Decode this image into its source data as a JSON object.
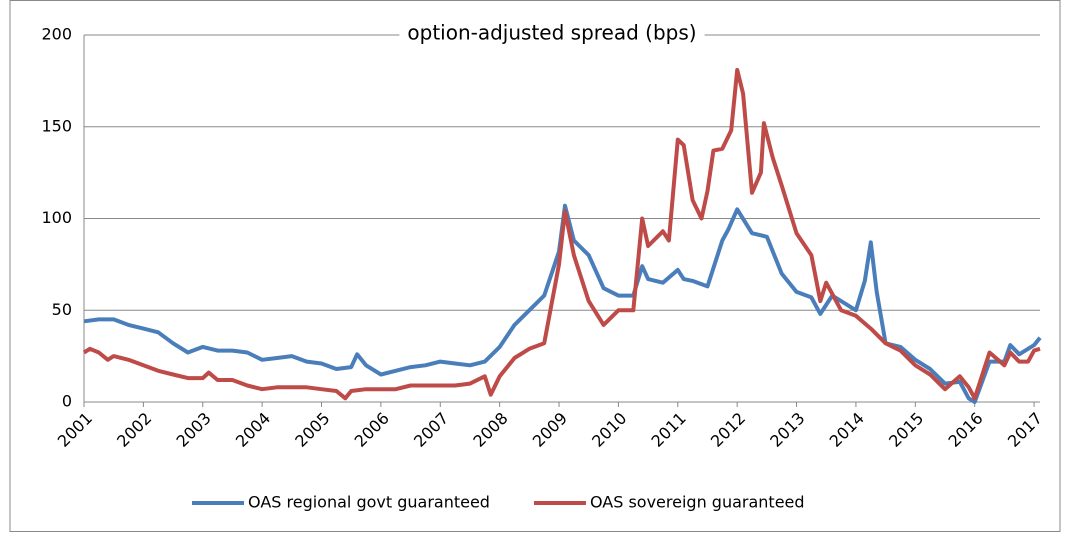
{
  "chart_data": {
    "type": "line",
    "title": "option-adjusted spread (bps)",
    "xlim": [
      2001,
      2017.1
    ],
    "xticks": [
      2001,
      2002,
      2003,
      2004,
      2005,
      2006,
      2007,
      2008,
      2009,
      2010,
      2011,
      2012,
      2013,
      2014,
      2015,
      2016,
      2017
    ],
    "ylim": [
      0,
      200
    ],
    "yticks": [
      0,
      50,
      100,
      150,
      200
    ],
    "grid": true,
    "legend": "bottom",
    "series": [
      {
        "name": "OAS regional govt guaranteed",
        "color": "#4a7ebb",
        "x": [
          2001,
          2001.25,
          2001.5,
          2001.75,
          2002,
          2002.25,
          2002.5,
          2002.75,
          2003,
          2003.25,
          2003.5,
          2003.75,
          2004,
          2004.25,
          2004.5,
          2004.75,
          2005,
          2005.25,
          2005.5,
          2005.6,
          2005.75,
          2006,
          2006.25,
          2006.5,
          2006.75,
          2007,
          2007.25,
          2007.5,
          2007.75,
          2008,
          2008.25,
          2008.5,
          2008.75,
          2009,
          2009.1,
          2009.25,
          2009.5,
          2009.75,
          2010,
          2010.25,
          2010.4,
          2010.5,
          2010.75,
          2011,
          2011.1,
          2011.25,
          2011.5,
          2011.75,
          2011.85,
          2012,
          2012.25,
          2012.5,
          2012.75,
          2013,
          2013.25,
          2013.4,
          2013.6,
          2013.75,
          2014,
          2014.15,
          2014.25,
          2014.35,
          2014.5,
          2014.75,
          2015,
          2015.25,
          2015.5,
          2015.75,
          2015.9,
          2016,
          2016.25,
          2016.5,
          2016.6,
          2016.75,
          2016.9,
          2017,
          2017.1
        ],
        "values": [
          44,
          45,
          45,
          42,
          40,
          38,
          32,
          27,
          30,
          28,
          28,
          27,
          23,
          24,
          25,
          22,
          21,
          18,
          19,
          26,
          20,
          15,
          17,
          19,
          20,
          22,
          21,
          20,
          22,
          30,
          42,
          50,
          58,
          82,
          107,
          88,
          80,
          62,
          58,
          58,
          74,
          67,
          65,
          72,
          67,
          66,
          63,
          88,
          94,
          105,
          92,
          90,
          70,
          60,
          57,
          48,
          58,
          55,
          50,
          66,
          87,
          60,
          32,
          30,
          23,
          18,
          10,
          11,
          2,
          0,
          22,
          22,
          31,
          26,
          29,
          31,
          35
        ]
      },
      {
        "name": "OAS sovereign guaranteed",
        "color": "#be4b48",
        "x": [
          2001,
          2001.1,
          2001.25,
          2001.4,
          2001.5,
          2001.75,
          2002,
          2002.25,
          2002.5,
          2002.75,
          2003,
          2003.1,
          2003.25,
          2003.5,
          2003.75,
          2004,
          2004.25,
          2004.5,
          2004.75,
          2005,
          2005.25,
          2005.4,
          2005.5,
          2005.75,
          2006,
          2006.25,
          2006.5,
          2006.75,
          2007,
          2007.25,
          2007.5,
          2007.75,
          2007.85,
          2008,
          2008.25,
          2008.5,
          2008.75,
          2009,
          2009.1,
          2009.25,
          2009.5,
          2009.75,
          2010,
          2010.25,
          2010.4,
          2010.5,
          2010.75,
          2010.85,
          2011,
          2011.1,
          2011.25,
          2011.4,
          2011.5,
          2011.6,
          2011.75,
          2011.9,
          2012,
          2012.1,
          2012.25,
          2012.4,
          2012.45,
          2012.6,
          2012.75,
          2013,
          2013.25,
          2013.4,
          2013.5,
          2013.75,
          2014,
          2014.25,
          2014.5,
          2014.75,
          2015,
          2015.25,
          2015.5,
          2015.75,
          2015.9,
          2016,
          2016.25,
          2016.5,
          2016.6,
          2016.75,
          2016.9,
          2017,
          2017.1
        ],
        "values": [
          27,
          29,
          27,
          23,
          25,
          23,
          20,
          17,
          15,
          13,
          13,
          16,
          12,
          12,
          9,
          7,
          8,
          8,
          8,
          7,
          6,
          2,
          6,
          7,
          7,
          7,
          9,
          9,
          9,
          9,
          10,
          14,
          4,
          14,
          24,
          29,
          32,
          75,
          104,
          80,
          55,
          42,
          50,
          50,
          100,
          85,
          93,
          88,
          143,
          140,
          110,
          100,
          115,
          137,
          138,
          148,
          181,
          168,
          114,
          125,
          152,
          133,
          118,
          92,
          80,
          55,
          65,
          50,
          47,
          40,
          32,
          28,
          20,
          15,
          7,
          14,
          8,
          2,
          27,
          20,
          27,
          22,
          22,
          28,
          29
        ]
      }
    ]
  }
}
